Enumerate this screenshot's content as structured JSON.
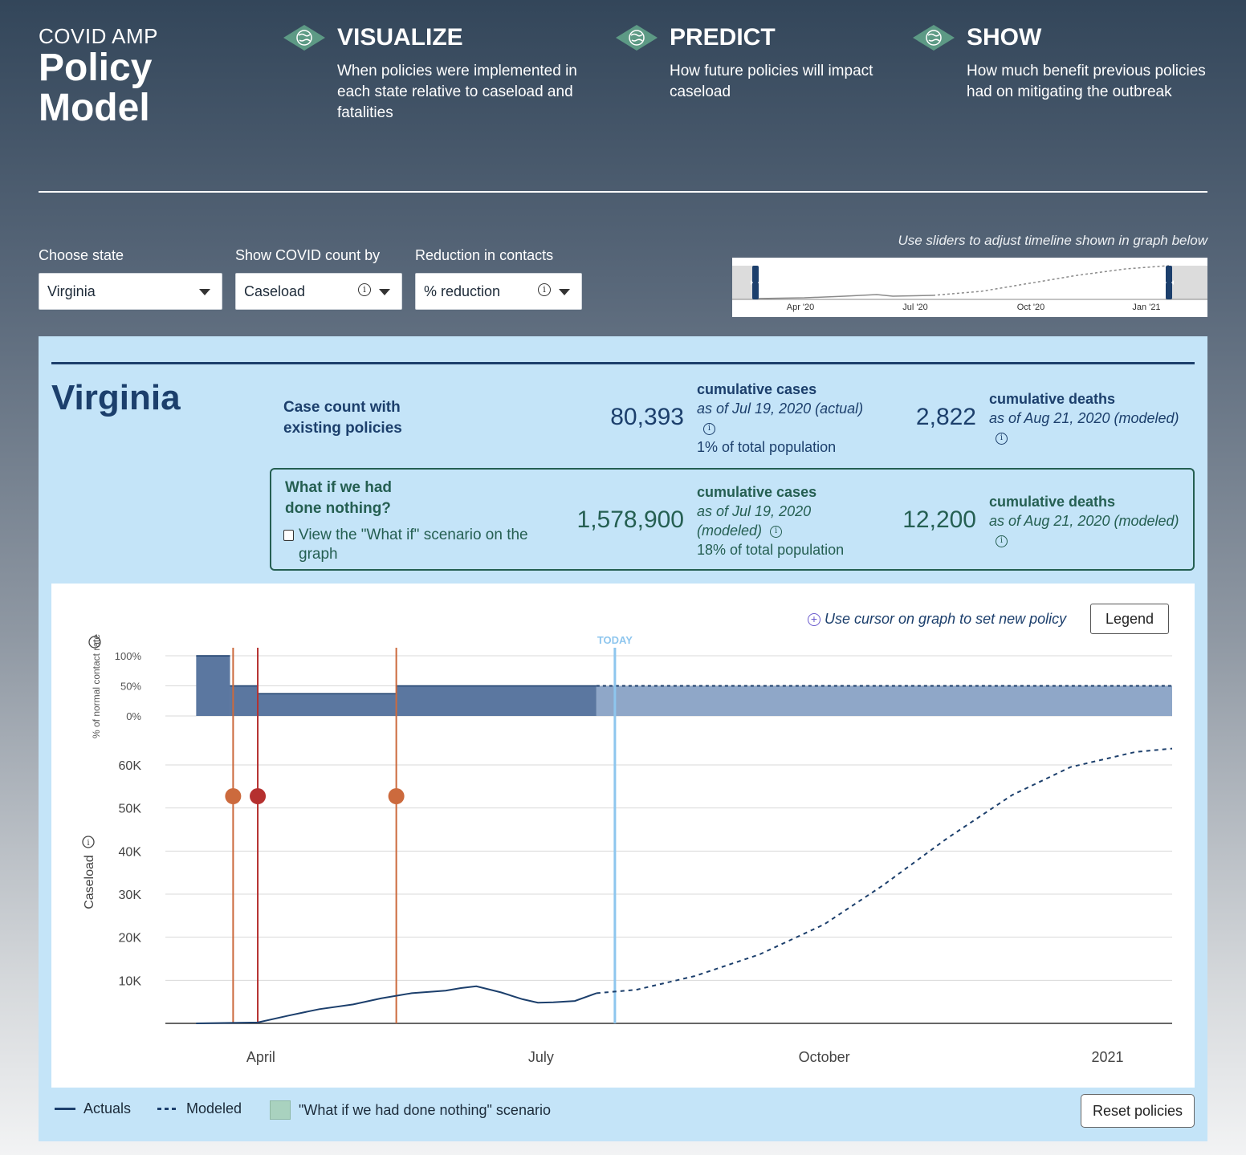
{
  "brand": {
    "line1": "COVID AMP",
    "line2": "Policy",
    "line3": "Model"
  },
  "features": [
    {
      "title": "VISUALIZE",
      "desc": "When policies were implemented in each state relative to caseload and fatalities",
      "icon": "globe-icon"
    },
    {
      "title": "PREDICT",
      "desc": "How future policies will impact caseload",
      "icon": "globe-icon"
    },
    {
      "title": "SHOW",
      "desc": "How much benefit previous policies had on mitigating the outbreak",
      "icon": "globe-icon"
    }
  ],
  "controls": {
    "state": {
      "label": "Choose state",
      "value": "Virginia"
    },
    "count_by": {
      "label": "Show COVID count by",
      "value": "Caseload"
    },
    "reduction": {
      "label": "Reduction in contacts",
      "value": "% reduction"
    }
  },
  "timeline": {
    "hint": "Use sliders to adjust timeline shown in graph below",
    "ticks": [
      "Apr '20",
      "Jul '20",
      "Oct '20",
      "Jan '21"
    ]
  },
  "summary": {
    "state_name": "Virginia",
    "existing": {
      "label": "Case count with existing policies",
      "cases": "80,393",
      "cases_label": "cumulative cases",
      "cases_asof": "as of Jul 19, 2020 (actual)",
      "cases_pct": "1% of total population",
      "deaths": "2,822",
      "deaths_label": "cumulative deaths",
      "deaths_asof": "as of Aug 21, 2020 (modeled)"
    },
    "whatif": {
      "label": "What if we had done nothing?",
      "checkbox_label": "View the \"What if\" scenario on the graph",
      "cases": "1,578,900",
      "cases_label": "cumulative cases",
      "cases_asof_1": "as of Jul 19, 2020",
      "cases_asof_2": "(modeled)",
      "cases_pct": "18% of total population",
      "deaths": "12,200",
      "deaths_label": "cumulative deaths",
      "deaths_asof": "as of Aug 21, 2020 (modeled)"
    }
  },
  "chart_header": {
    "cursor_hint": "Use cursor on graph to set new policy",
    "legend_button": "Legend"
  },
  "chart_data": {
    "type": "line",
    "today_label": "TODAY",
    "contact_axis": {
      "label": "% of normal contact rate",
      "ticks": [
        "100%",
        "50%",
        "0%"
      ]
    },
    "caseload_axis": {
      "label": "Caseload",
      "ticks": [
        "60K",
        "50K",
        "40K",
        "30K",
        "20K",
        "10K"
      ],
      "ylim": [
        0,
        60000
      ]
    },
    "x_ticks": [
      "April",
      "July",
      "October",
      "2021"
    ],
    "contact_steps": [
      {
        "from": "2020-03-11",
        "to": "2020-03-22",
        "value": 100
      },
      {
        "from": "2020-03-22",
        "to": "2020-03-31",
        "value": 50
      },
      {
        "from": "2020-03-31",
        "to": "2020-05-15",
        "value": 37
      },
      {
        "from": "2020-05-15",
        "to": "2020-07-19",
        "value": 50
      },
      {
        "from": "2020-07-19",
        "to": "2021-01-22",
        "value": 50,
        "modeled": true
      }
    ],
    "policy_events": [
      {
        "date": "2020-03-23",
        "color": "#cc6a3d"
      },
      {
        "date": "2020-03-31",
        "color": "#b5302f"
      },
      {
        "date": "2020-05-15",
        "color": "#cc6a3d"
      }
    ],
    "today_date": "2020-07-25",
    "actuals": [
      [
        "2020-03-11",
        0
      ],
      [
        "2020-03-31",
        200
      ],
      [
        "2020-04-10",
        1800
      ],
      [
        "2020-04-20",
        3300
      ],
      [
        "2020-05-01",
        4400
      ],
      [
        "2020-05-10",
        5800
      ],
      [
        "2020-05-20",
        7000
      ],
      [
        "2020-05-31",
        7600
      ],
      [
        "2020-06-05",
        8200
      ],
      [
        "2020-06-10",
        8600
      ],
      [
        "2020-06-18",
        7200
      ],
      [
        "2020-06-25",
        5600
      ],
      [
        "2020-06-30",
        4800
      ],
      [
        "2020-07-05",
        4900
      ],
      [
        "2020-07-12",
        5200
      ],
      [
        "2020-07-19",
        7000
      ]
    ],
    "modeled": [
      [
        "2020-07-19",
        7000
      ],
      [
        "2020-08-01",
        7800
      ],
      [
        "2020-08-20",
        11000
      ],
      [
        "2020-09-10",
        16000
      ],
      [
        "2020-10-01",
        23000
      ],
      [
        "2020-10-20",
        32000
      ],
      [
        "2020-11-10",
        43000
      ],
      [
        "2020-12-01",
        53000
      ],
      [
        "2020-12-20",
        59500
      ],
      [
        "2021-01-10",
        63000
      ],
      [
        "2021-01-22",
        63800
      ]
    ]
  },
  "footer": {
    "actuals": "Actuals",
    "modeled": "Modeled",
    "scenario": "\"What if we had done nothing\" scenario",
    "reset_button": "Reset policies"
  },
  "colors": {
    "primary": "#1c3f6c",
    "bar_actual": "#5b77a0",
    "bar_modeled": "#8fa7c8",
    "today": "#8ec6ee",
    "panel": "#c4e4f8",
    "scenario": "#a9d2bf"
  }
}
